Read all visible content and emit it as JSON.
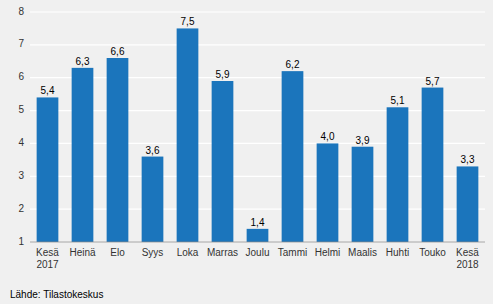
{
  "chart_data": {
    "type": "bar",
    "categories": [
      "Kesä\n2017",
      "Heinä",
      "Elo",
      "Syys",
      "Loka",
      "Marras",
      "Joulu",
      "Tammi",
      "Helmi",
      "Maalis",
      "Huhti",
      "Touko",
      "Kesä\n2018"
    ],
    "values": [
      5.4,
      6.3,
      6.6,
      3.6,
      7.5,
      5.9,
      1.4,
      6.2,
      4.0,
      3.9,
      5.1,
      5.7,
      3.3
    ],
    "value_labels": [
      "5,4",
      "6,3",
      "6,6",
      "3,6",
      "7,5",
      "5,9",
      "1,4",
      "6,2",
      "4,0",
      "3,9",
      "5,1",
      "5,7",
      "3,3"
    ],
    "color": "#1b75bc",
    "ylim": [
      1,
      8
    ],
    "yticks": [
      1,
      2,
      3,
      4,
      5,
      6,
      7,
      8
    ],
    "grid": true,
    "data_labels": true,
    "annotations": [
      "Lähde: Tilastokeskus"
    ]
  }
}
